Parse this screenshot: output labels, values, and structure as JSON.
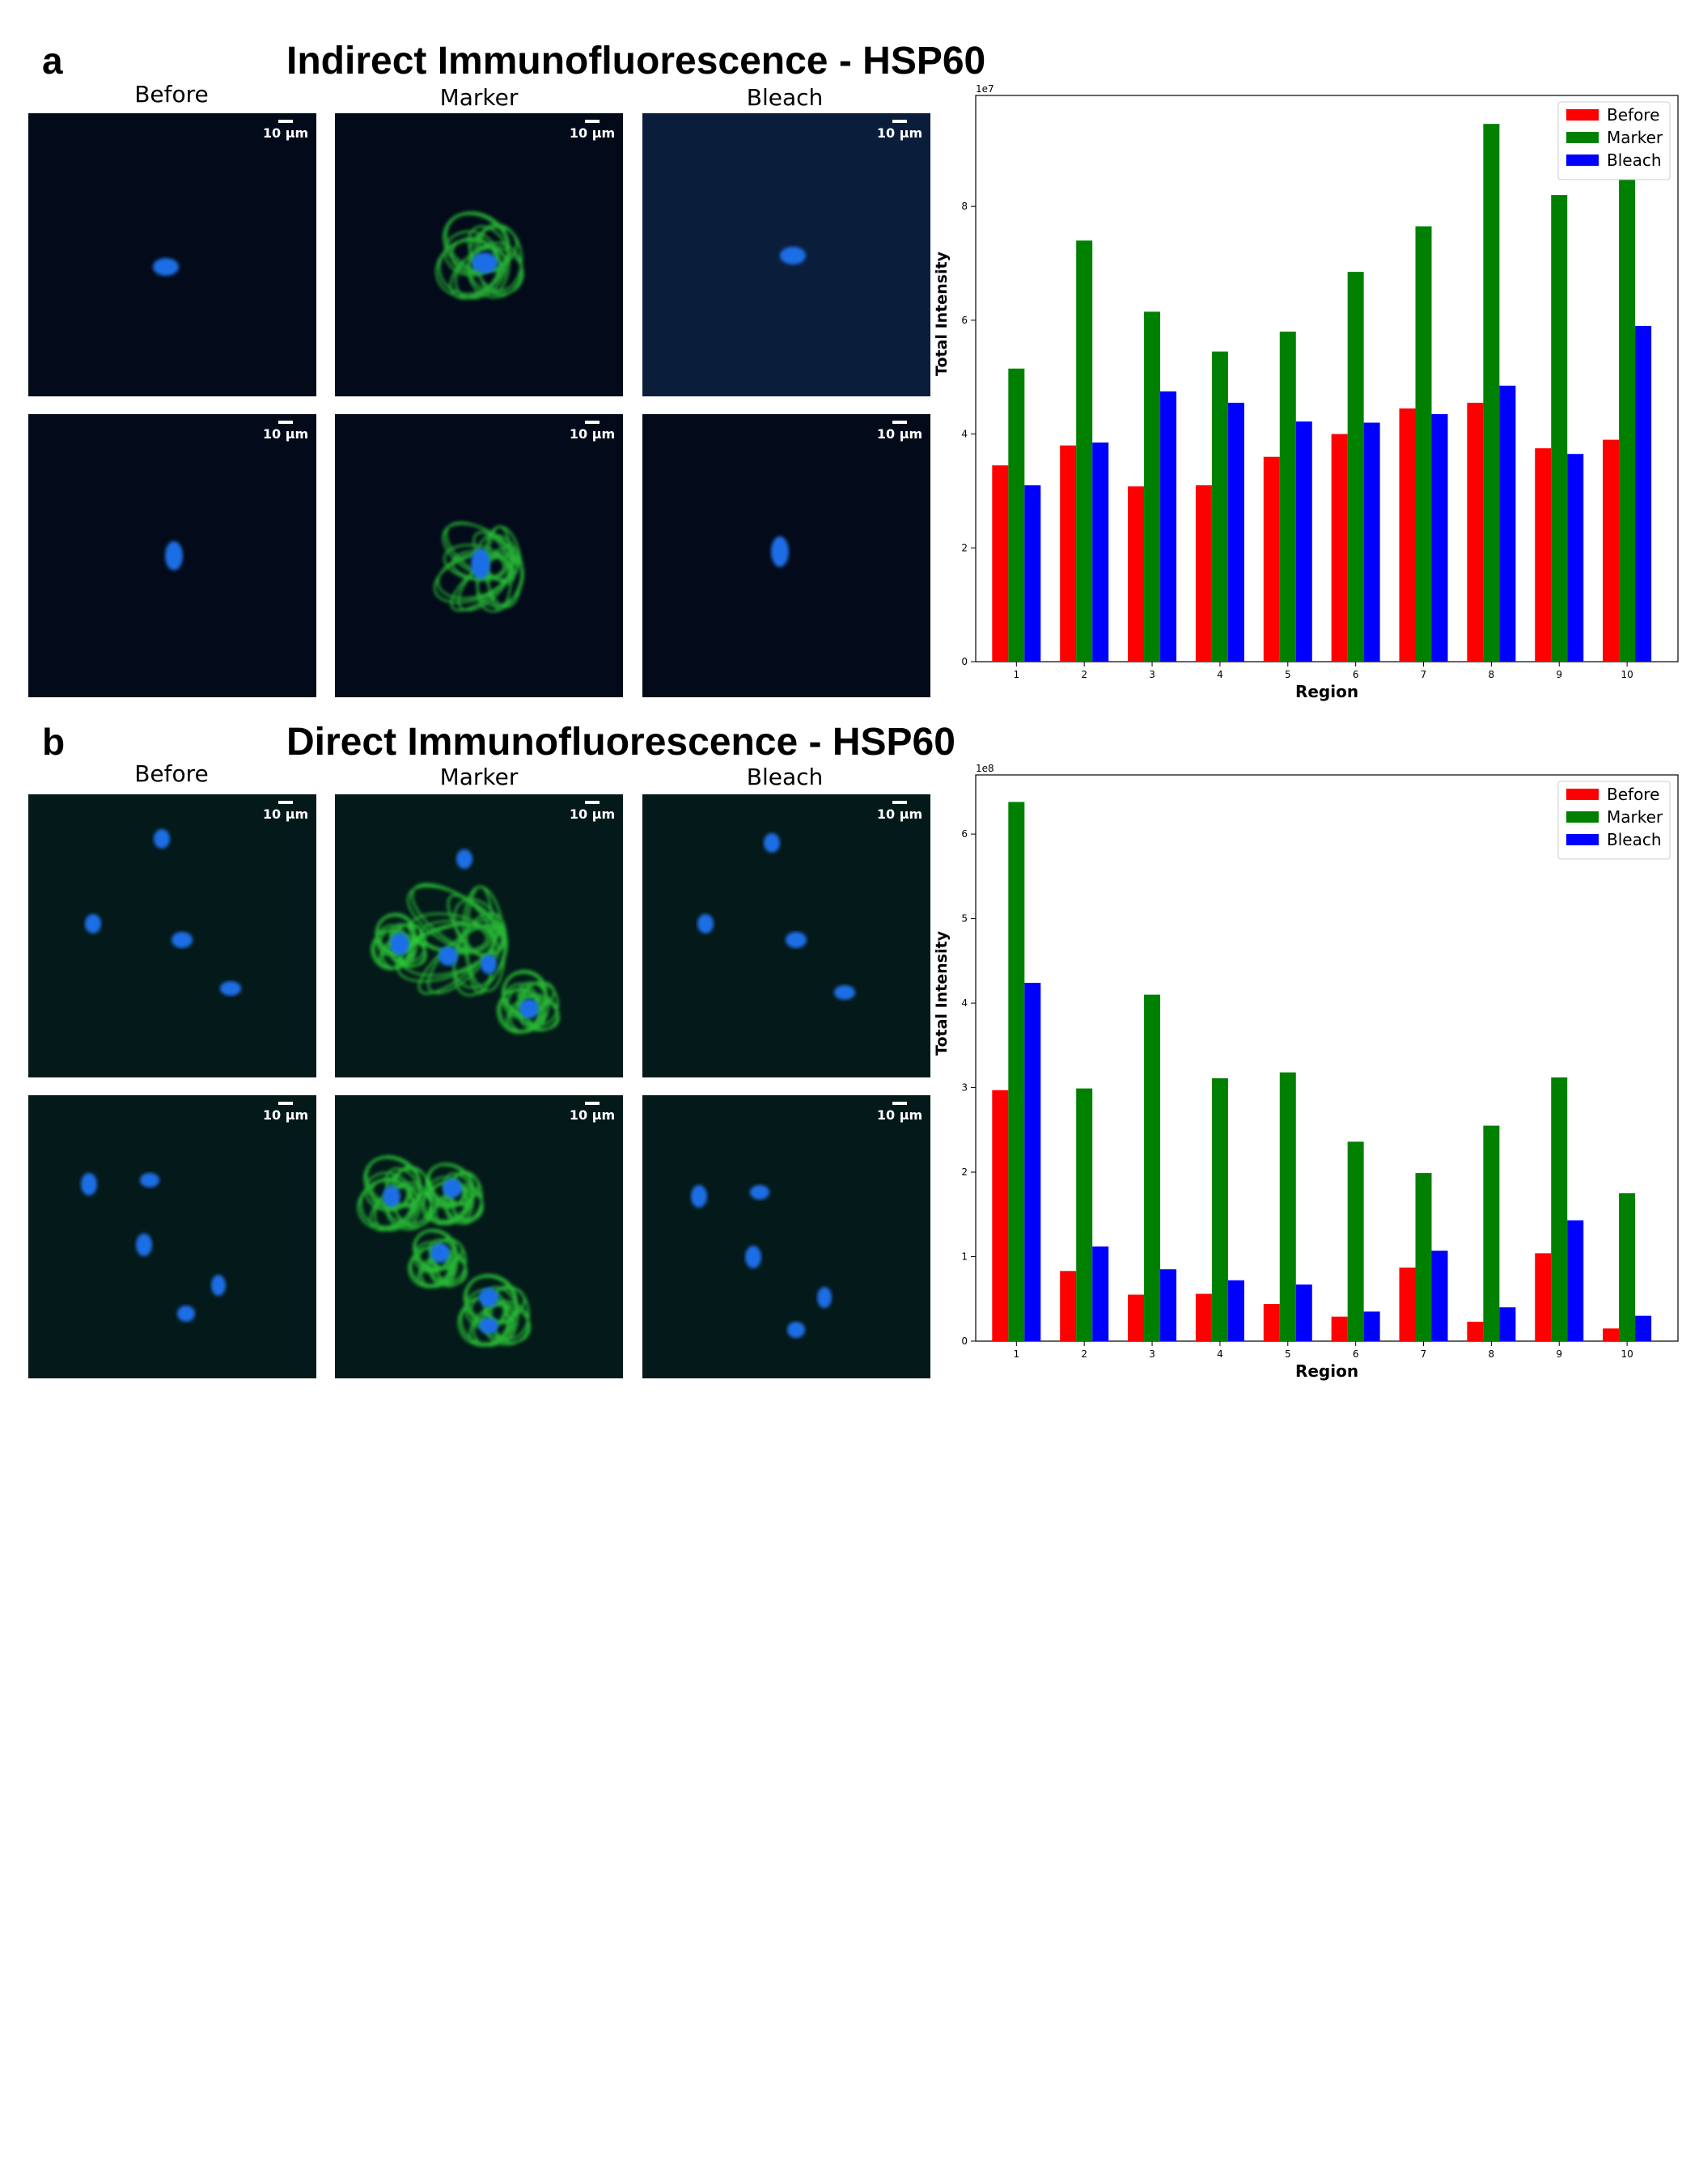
{
  "panels": [
    {
      "letter": "a",
      "title": "Indirect Immunofluorescence - HSP60",
      "column_labels": [
        "Before",
        "Marker",
        "Bleach"
      ],
      "scale_label": "10 μm",
      "chart_data": {
        "type": "bar",
        "categories": [
          "1",
          "2",
          "3",
          "4",
          "5",
          "6",
          "7",
          "8",
          "9",
          "10"
        ],
        "series": [
          {
            "name": "Before",
            "color": "#ff0000",
            "values": [
              3.45,
              3.8,
              3.08,
              3.1,
              3.6,
              4.0,
              4.45,
              4.55,
              3.75,
              3.9
            ]
          },
          {
            "name": "Marker",
            "color": "#008000",
            "values": [
              5.15,
              7.4,
              6.15,
              5.45,
              5.8,
              6.85,
              7.65,
              9.45,
              8.2,
              8.7
            ]
          },
          {
            "name": "Bleach",
            "color": "#0000ff",
            "values": [
              3.1,
              3.85,
              4.75,
              4.55,
              4.22,
              4.2,
              4.35,
              4.85,
              3.65,
              5.9
            ]
          }
        ],
        "xlabel": "Region",
        "ylabel": "Total Intensity",
        "y_multiplier": "1e7",
        "yticks": [
          0,
          2,
          4,
          6,
          8
        ],
        "ylim": [
          0,
          9.95
        ],
        "legend": "top-right",
        "grid": false
      }
    },
    {
      "letter": "b",
      "title": "Direct Immunofluorescence - HSP60",
      "column_labels": [
        "Before",
        "Marker",
        "Bleach"
      ],
      "scale_label": "10 μm",
      "chart_data": {
        "type": "bar",
        "categories": [
          "1",
          "2",
          "3",
          "4",
          "5",
          "6",
          "7",
          "8",
          "9",
          "10"
        ],
        "series": [
          {
            "name": "Before",
            "color": "#ff0000",
            "values": [
              2.97,
              0.83,
              0.55,
              0.56,
              0.44,
              0.29,
              0.87,
              0.23,
              1.04,
              0.15
            ]
          },
          {
            "name": "Marker",
            "color": "#008000",
            "values": [
              6.38,
              2.99,
              4.1,
              3.11,
              3.18,
              2.36,
              1.99,
              2.55,
              3.12,
              1.75
            ]
          },
          {
            "name": "Bleach",
            "color": "#0000ff",
            "values": [
              4.24,
              1.12,
              0.85,
              0.72,
              0.67,
              0.35,
              1.07,
              0.4,
              1.43,
              0.3
            ]
          }
        ],
        "xlabel": "Region",
        "ylabel": "Total Intensity",
        "y_multiplier": "1e8",
        "yticks": [
          0,
          1,
          2,
          3,
          4,
          5,
          6
        ],
        "ylim": [
          0,
          6.7
        ],
        "legend": "top-right",
        "grid": false
      }
    }
  ],
  "micrograph_colors": {
    "background_dark": "#030b1a",
    "background_bleach_a": "#0a1e3c",
    "background_b": "#041a1a",
    "nucleus": "#1e6ee6",
    "marker": "#2fd23a"
  }
}
